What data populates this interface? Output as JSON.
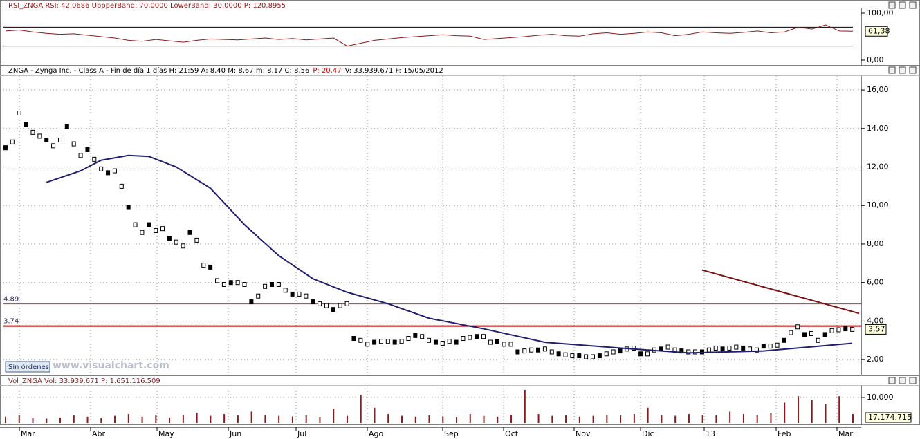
{
  "chart_data": [
    {
      "type": "line",
      "header": "RSI_ZNGA  RSI: 42,0686  UppperBand: 70,0000  LowerBand: 30,0000  P: 120,8955",
      "series": [
        {
          "name": "RSI_ZNGA",
          "color": "#8b1a1a",
          "values": [
            62,
            64,
            60,
            57,
            55,
            56,
            53,
            50,
            47,
            42,
            40,
            44,
            41,
            38,
            42,
            45,
            44,
            43,
            45,
            47,
            44,
            46,
            43,
            45,
            47,
            30,
            36,
            42,
            45,
            48,
            50,
            52,
            54,
            52,
            51,
            44,
            46,
            48,
            50,
            53,
            55,
            52,
            51,
            56,
            58,
            55,
            57,
            60,
            58,
            52,
            55,
            60,
            58,
            57,
            59,
            62,
            58,
            60,
            70,
            66,
            75,
            62,
            61.38
          ]
        }
      ],
      "bands": [
        70,
        30
      ],
      "ylim": [
        -11.8,
        110.3
      ],
      "yticks": [
        {
          "value": 100,
          "label": "100,00"
        },
        {
          "value": 0,
          "label": "0,00"
        }
      ],
      "last_label": "61,38"
    },
    {
      "type": "stock",
      "header": [
        "ZNGA - Zynga Inc. - Class A - Fin de día 1 días  H: 21:59  A: 8,40  M: 8,67  m: 8,17  C: 8,56",
        "P: 20,47",
        "V: 33.939.671  F: 15/05/2012"
      ],
      "xlim": [
        -0.3,
        125.3
      ],
      "ylim": [
        1.18,
        16.72
      ],
      "yticks": [
        {
          "value": 2,
          "label": "2,00"
        },
        {
          "value": 4,
          "label": "4,00"
        },
        {
          "value": 6,
          "label": "6,00"
        },
        {
          "value": 8,
          "label": "8,00"
        },
        {
          "value": 10,
          "label": "10,00"
        },
        {
          "value": 12,
          "label": "12,00"
        },
        {
          "value": 14,
          "label": "14,00"
        },
        {
          "value": 16,
          "label": "16,00"
        }
      ],
      "series": [
        {
          "name": "ZNGA",
          "color": "#000000",
          "values": [
            13.0,
            13.3,
            14.8,
            14.2,
            13.8,
            13.6,
            13.4,
            13.1,
            13.4,
            14.1,
            13.2,
            12.6,
            12.9,
            12.4,
            11.9,
            11.7,
            11.8,
            11.0,
            9.9,
            9.0,
            8.6,
            9.0,
            8.7,
            8.8,
            8.3,
            8.1,
            7.9,
            8.6,
            8.2,
            6.9,
            6.8,
            6.1,
            5.9,
            6.0,
            6.0,
            5.9,
            5.0,
            5.3,
            5.8,
            5.9,
            5.9,
            5.6,
            5.4,
            5.4,
            5.3,
            5.0,
            4.9,
            4.8,
            4.6,
            4.8,
            4.9,
            3.1,
            3.0,
            2.8,
            2.9,
            2.95,
            2.95,
            2.9,
            2.95,
            3.1,
            3.25,
            3.2,
            3.0,
            2.9,
            2.85,
            2.95,
            2.9,
            3.1,
            3.15,
            3.2,
            3.2,
            2.9,
            2.95,
            2.8,
            2.8,
            2.4,
            2.45,
            2.5,
            2.5,
            2.55,
            2.4,
            2.3,
            2.25,
            2.2,
            2.2,
            2.15,
            2.15,
            2.2,
            2.3,
            2.4,
            2.45,
            2.55,
            2.6,
            2.3,
            2.3,
            2.5,
            2.55,
            2.65,
            2.5,
            2.45,
            2.4,
            2.4,
            2.4,
            2.5,
            2.6,
            2.55,
            2.6,
            2.65,
            2.6,
            2.55,
            2.5,
            2.7,
            2.7,
            2.75,
            3.0,
            3.4,
            3.7,
            3.3,
            3.35,
            3.0,
            3.3,
            3.5,
            3.55,
            3.6,
            3.57
          ]
        },
        {
          "name": "MA",
          "color": "#1f1f6e",
          "x": [
            6,
            11,
            14,
            18,
            21,
            25,
            30,
            35,
            40,
            45,
            50,
            56,
            62,
            70,
            79,
            90,
            100,
            111,
            124
          ],
          "values": [
            11.2,
            11.8,
            12.35,
            12.6,
            12.55,
            12.0,
            10.9,
            9.0,
            7.4,
            6.2,
            5.5,
            4.9,
            4.15,
            3.6,
            2.9,
            2.6,
            2.35,
            2.45,
            2.85
          ]
        },
        {
          "name": "Trend",
          "color": "#7a1010",
          "x": [
            102,
            125
          ],
          "values": [
            6.65,
            4.4
          ]
        }
      ],
      "hlines": [
        {
          "value": 4.89,
          "color": "#c03030"
        },
        {
          "value": 3.74,
          "color": "#b00000"
        }
      ],
      "last_label": "3,57",
      "button": "Sin órdenes",
      "watermark": "www.visualchart.com"
    },
    {
      "type": "bar",
      "header": "Vol_ZNGA  Vol: 33.939.671  P: 1.651.116.509",
      "color": "#8b1a1a",
      "values": [
        2500,
        3000,
        2000,
        1800,
        2200,
        3000,
        2500,
        2000,
        2800,
        3500,
        2500,
        3000,
        2200,
        3200,
        4000,
        2800,
        3500,
        3000,
        4500,
        3200,
        2800,
        2600,
        3000,
        2400,
        5500,
        2800,
        11000,
        6000,
        3500,
        2800,
        2500,
        3000,
        2600,
        2400,
        3500,
        2800,
        2500,
        3200,
        13000,
        3500,
        2800,
        3000,
        2500,
        2800,
        3200,
        3000,
        3500,
        6000,
        3000,
        2800,
        3500,
        3200,
        3000,
        4500,
        3500,
        3000,
        4000,
        8000,
        10500,
        9000,
        7500,
        10500,
        3500
      ],
      "ylim": [
        -800,
        14600
      ],
      "yticks": [
        {
          "value": 10000,
          "label": "10.000"
        }
      ],
      "last_label": "17.174.715",
      "months": [
        "Mar",
        "Abr",
        "May",
        "Jun",
        "Jul",
        "Ago",
        "Sep",
        "Oct",
        "Nov",
        "Dic",
        "13",
        "Feb",
        "Mar"
      ]
    }
  ]
}
